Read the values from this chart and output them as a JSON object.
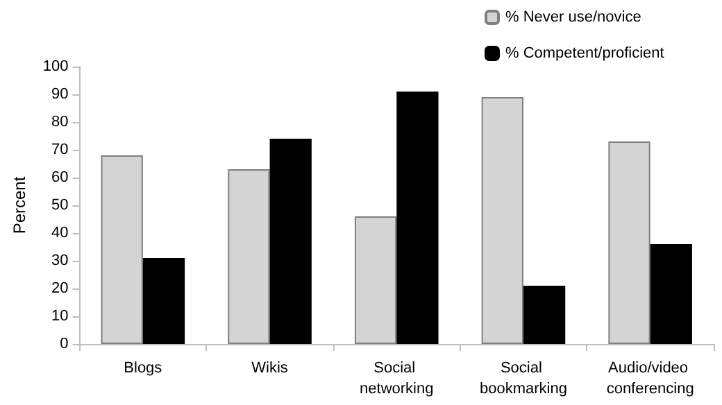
{
  "chart_data": {
    "type": "bar",
    "ylabel": "Percent",
    "categories": [
      "Blogs",
      "Wikis",
      "Social networking",
      "Social bookmarking",
      "Audio/video conferencing"
    ],
    "series": [
      {
        "name": "% Never use/novice",
        "color": "#d4d4d4",
        "values": [
          68,
          63,
          46,
          89,
          73
        ]
      },
      {
        "name": "% Competent/proficient",
        "color": "#000000",
        "values": [
          31,
          74,
          91,
          21,
          36
        ]
      }
    ],
    "ylim": [
      0,
      100
    ],
    "yticks": [
      0,
      10,
      20,
      30,
      40,
      50,
      60,
      70,
      80,
      90,
      100
    ],
    "grid": false,
    "legend": "top right"
  }
}
